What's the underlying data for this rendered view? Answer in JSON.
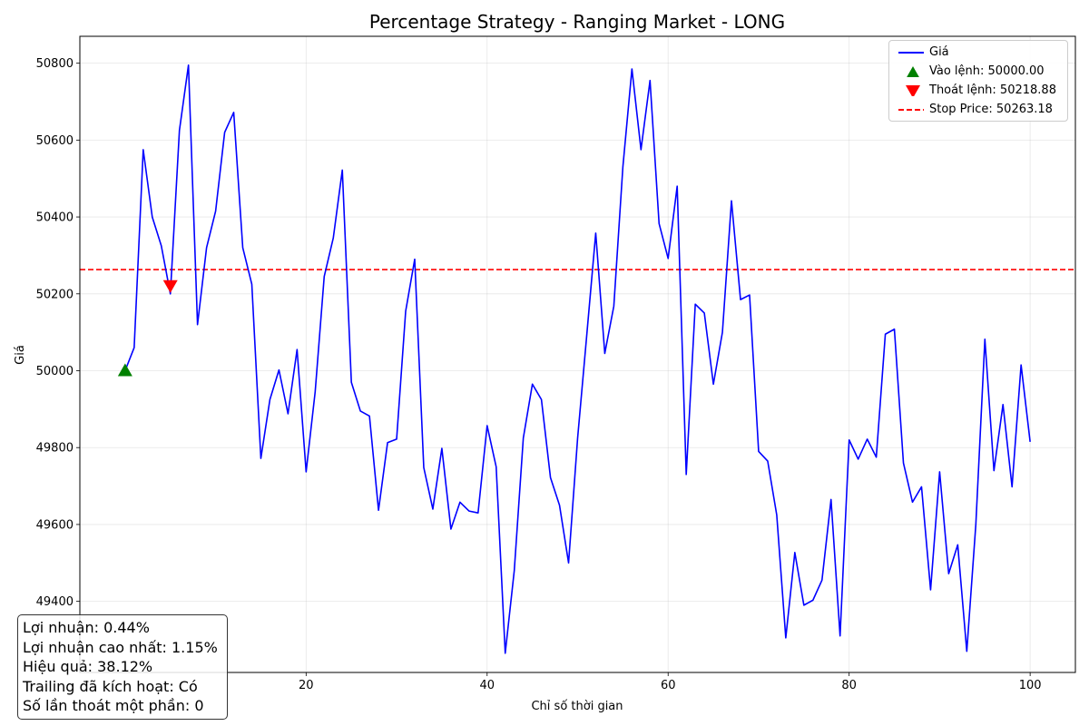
{
  "chart_data": {
    "type": "line",
    "title": "Percentage Strategy - Ranging Market - LONG",
    "xlabel": "Chỉ số thời gian",
    "ylabel": "Giá",
    "xlim": [
      -5,
      105
    ],
    "ylim": [
      49215,
      50870
    ],
    "xticks": [
      20,
      40,
      60,
      80,
      100
    ],
    "yticks": [
      49400,
      49600,
      49800,
      50000,
      50200,
      50400,
      50600,
      50800
    ],
    "grid": true,
    "legend_position": "top-right",
    "series": [
      {
        "name": "Giá",
        "color": "#0000ff",
        "x": [
          0,
          1,
          2,
          3,
          4,
          5,
          6,
          7,
          8,
          9,
          10,
          11,
          12,
          13,
          14,
          15,
          16,
          17,
          18,
          19,
          20,
          21,
          22,
          23,
          24,
          25,
          26,
          27,
          28,
          29,
          30,
          31,
          32,
          33,
          34,
          35,
          36,
          37,
          38,
          39,
          40,
          41,
          42,
          43,
          44,
          45,
          46,
          47,
          48,
          49,
          50,
          51,
          52,
          53,
          54,
          55,
          56,
          57,
          58,
          59,
          60,
          61,
          62,
          63,
          64,
          65,
          66,
          67,
          68,
          69,
          70,
          71,
          72,
          73,
          74,
          75,
          76,
          77,
          78,
          79,
          80,
          81,
          82,
          83,
          84,
          85,
          86,
          87,
          88,
          89,
          90,
          91,
          92,
          93,
          94,
          95,
          96,
          97,
          98,
          99,
          100
        ],
        "values": [
          50000,
          50060,
          50575,
          50400,
          50325,
          50200,
          50625,
          50795,
          50120,
          50320,
          50415,
          50620,
          50672,
          50320,
          50225,
          49772,
          49925,
          50002,
          49888,
          50055,
          49737,
          49945,
          50245,
          50345,
          50522,
          49970,
          49895,
          49882,
          49637,
          49813,
          49822,
          50155,
          50290,
          49748,
          49640,
          49798,
          49588,
          49658,
          49635,
          49630,
          49857,
          49750,
          49265,
          49480,
          49825,
          49965,
          49925,
          49722,
          49650,
          49500,
          49825,
          50090,
          50358,
          50045,
          50168,
          50530,
          50785,
          50575,
          50755,
          50383,
          50292,
          50480,
          49730,
          50173,
          50150,
          49965,
          50100,
          50442,
          50185,
          50197,
          49790,
          49765,
          49625,
          49305,
          49527,
          49390,
          49403,
          49455,
          49665,
          49310,
          49820,
          49770,
          49822,
          49775,
          50095,
          50108,
          49760,
          49658,
          49698,
          49430,
          49737,
          49472,
          49547,
          49270,
          49600,
          50082,
          49740,
          49912,
          49698,
          50015,
          49815
        ]
      }
    ],
    "entry": {
      "label": "Vào lệnh: 50000.00",
      "x": 0,
      "y": 50000,
      "color": "#008000",
      "marker": "triangle-up"
    },
    "exit": {
      "label": "Thoát lệnh: 50218.88",
      "x": 5,
      "y": 50218.88,
      "color": "#ff0000",
      "marker": "triangle-down"
    },
    "stop": {
      "label": "Stop Price: 50263.18",
      "y": 50263.18,
      "color": "#ff0000",
      "style": "dashed"
    }
  },
  "stats": {
    "profit": "Lợi nhuận: 0.44%",
    "max_profit": "Lợi nhuận cao nhất: 1.15%",
    "efficiency": "Hiệu quả: 38.12%",
    "trailing": "Trailing đã kích hoạt: Có",
    "partial_exits": "Số lần thoát một phần: 0"
  }
}
